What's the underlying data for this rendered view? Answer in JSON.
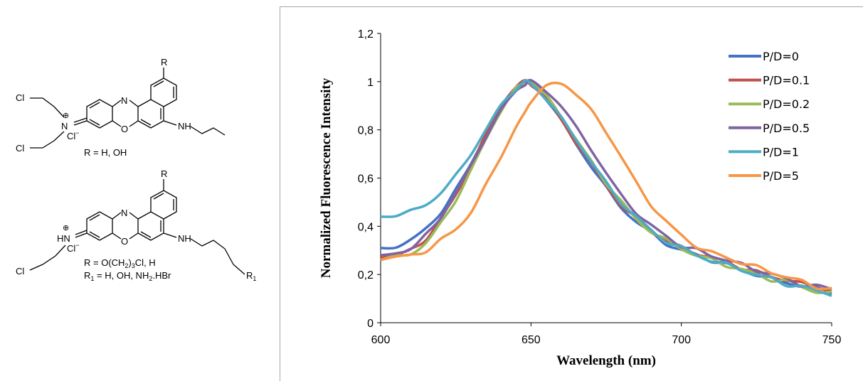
{
  "structures": {
    "top": {
      "cl_a": "Cl",
      "cl_b": "Cl",
      "n_plus": "N",
      "plus": "⊕",
      "counter": "Cl",
      "counter_sup": "−",
      "ring_n": "N",
      "ring_o": "O",
      "nh": "NH",
      "r_sub": "R",
      "r_def": "R = H, OH"
    },
    "bottom": {
      "cl_a": "Cl",
      "hn": "HN",
      "plus": "⊕",
      "counter": "Cl",
      "counter_sup": "−",
      "ring_n": "N",
      "ring_o": "O",
      "nh": "NH",
      "r_sub": "R",
      "r1_sub": "R",
      "r1_sub_idx": "1",
      "r_def_a": "R = O(CH",
      "r_def_sub2": "2",
      "r_def_b": ")",
      "r_def_sub3": "3",
      "r_def_c": "Cl, H",
      "r1_def_a": "R",
      "r1_def_idx": "1",
      "r1_def_b": " = H, OH, NH",
      "r1_def_sub2": "2",
      "r1_def_c": ".HBr"
    }
  },
  "chart_data": {
    "type": "line",
    "title": "",
    "xlabel": "Wavelength (nm)",
    "ylabel": "Normalized Fluorescence  Intensity",
    "xlim": [
      600,
      750
    ],
    "ylim": [
      0,
      1.2
    ],
    "x_ticks": [
      "600",
      "650",
      "700",
      "750"
    ],
    "y_ticks": [
      "0",
      "0,2",
      "0,4",
      "0,6",
      "0,8",
      "1",
      "1,2"
    ],
    "grid": false,
    "legend": "right",
    "x": [
      600,
      605,
      610,
      615,
      620,
      625,
      630,
      635,
      640,
      645,
      648,
      650,
      655,
      660,
      665,
      670,
      675,
      680,
      685,
      690,
      695,
      700,
      705,
      710,
      715,
      720,
      725,
      730,
      735,
      740,
      745,
      750
    ],
    "series": [
      {
        "name": "P/D=0",
        "color": "#4472c4",
        "values": [
          0.31,
          0.32,
          0.34,
          0.39,
          0.46,
          0.55,
          0.66,
          0.78,
          0.89,
          0.97,
          1.0,
          0.99,
          0.93,
          0.84,
          0.74,
          0.65,
          0.56,
          0.48,
          0.42,
          0.37,
          0.33,
          0.3,
          0.28,
          0.26,
          0.24,
          0.22,
          0.2,
          0.18,
          0.17,
          0.15,
          0.14,
          0.13
        ]
      },
      {
        "name": "P/D=0.1",
        "color": "#c0504d",
        "values": [
          0.27,
          0.28,
          0.3,
          0.35,
          0.43,
          0.53,
          0.65,
          0.78,
          0.9,
          0.98,
          1.0,
          0.99,
          0.93,
          0.84,
          0.75,
          0.66,
          0.57,
          0.49,
          0.43,
          0.38,
          0.34,
          0.31,
          0.29,
          0.27,
          0.25,
          0.23,
          0.21,
          0.19,
          0.18,
          0.16,
          0.15,
          0.13
        ]
      },
      {
        "name": "P/D=0.2",
        "color": "#9bbb59",
        "values": [
          0.26,
          0.27,
          0.29,
          0.33,
          0.41,
          0.51,
          0.63,
          0.76,
          0.88,
          0.97,
          0.99,
          1.0,
          0.94,
          0.86,
          0.76,
          0.67,
          0.58,
          0.5,
          0.43,
          0.38,
          0.34,
          0.31,
          0.28,
          0.26,
          0.24,
          0.22,
          0.2,
          0.18,
          0.17,
          0.15,
          0.13,
          0.12
        ]
      },
      {
        "name": "P/D=0.5",
        "color": "#8064a2",
        "values": [
          0.28,
          0.29,
          0.31,
          0.36,
          0.44,
          0.54,
          0.65,
          0.77,
          0.88,
          0.96,
          0.99,
          1.0,
          0.96,
          0.9,
          0.81,
          0.72,
          0.62,
          0.53,
          0.46,
          0.4,
          0.36,
          0.32,
          0.3,
          0.28,
          0.26,
          0.24,
          0.22,
          0.2,
          0.18,
          0.16,
          0.15,
          0.14
        ]
      },
      {
        "name": "P/D=1",
        "color": "#4bacc6",
        "values": [
          0.44,
          0.45,
          0.46,
          0.49,
          0.54,
          0.61,
          0.7,
          0.8,
          0.9,
          0.97,
          1.0,
          0.99,
          0.93,
          0.85,
          0.76,
          0.67,
          0.58,
          0.5,
          0.44,
          0.38,
          0.34,
          0.31,
          0.28,
          0.26,
          0.24,
          0.22,
          0.2,
          0.18,
          0.16,
          0.15,
          0.13,
          0.12
        ]
      },
      {
        "name": "P/D=5",
        "color": "#f79646",
        "values": [
          0.26,
          0.27,
          0.28,
          0.3,
          0.34,
          0.39,
          0.46,
          0.57,
          0.69,
          0.81,
          0.87,
          0.92,
          0.98,
          0.99,
          0.95,
          0.88,
          0.79,
          0.69,
          0.58,
          0.49,
          0.42,
          0.36,
          0.32,
          0.29,
          0.27,
          0.25,
          0.23,
          0.21,
          0.19,
          0.17,
          0.15,
          0.14
        ]
      }
    ]
  }
}
